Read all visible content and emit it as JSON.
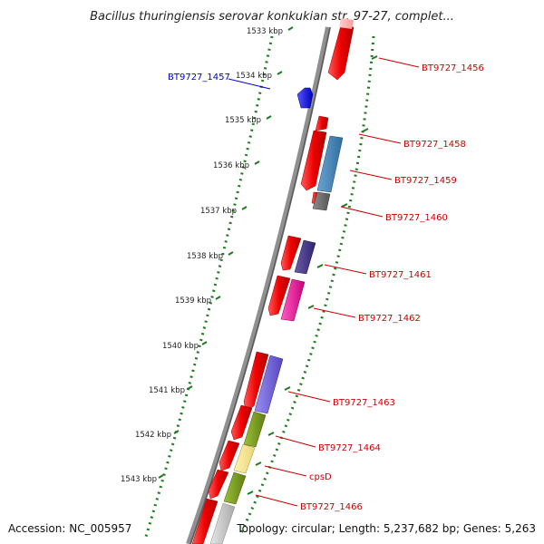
{
  "title": "Bacillus thuringiensis serovar konkukian str. 97-27, complet...",
  "accession": "Accession: NC_005957",
  "topology": "Topology: circular; Length: 5,237,682 bp; Genes: 5,263",
  "colors": {
    "backbone": "#8a8a8a",
    "ruler": "#1f7a1f",
    "red_gene": "#ff0000",
    "blue_gene": "#1a1aee",
    "label_red": "#cc0000",
    "label_blue": "#0000cc"
  },
  "ruler_labels": [
    "1533 kbp",
    "1534 kbp",
    "1535 kbp",
    "1536 kbp",
    "1537 kbp",
    "1538 kbp",
    "1539 kbp",
    "1540 kbp",
    "1541 kbp",
    "1542 kbp",
    "1543 kbp"
  ],
  "gene_labels": [
    {
      "text": "BT9727_1457",
      "color": "#0000cc"
    },
    {
      "text": "BT9727_1456",
      "color": "#cc0000"
    },
    {
      "text": "BT9727_1458",
      "color": "#cc0000"
    },
    {
      "text": "BT9727_1459",
      "color": "#cc0000"
    },
    {
      "text": "BT9727_1460",
      "color": "#cc0000"
    },
    {
      "text": "BT9727_1461",
      "color": "#cc0000"
    },
    {
      "text": "BT9727_1462",
      "color": "#cc0000"
    },
    {
      "text": "BT9727_1463",
      "color": "#cc0000"
    },
    {
      "text": "BT9727_1464",
      "color": "#cc0000"
    },
    {
      "text": "cpsD",
      "color": "#cc0000"
    },
    {
      "text": "BT9727_1466",
      "color": "#cc0000"
    }
  ]
}
